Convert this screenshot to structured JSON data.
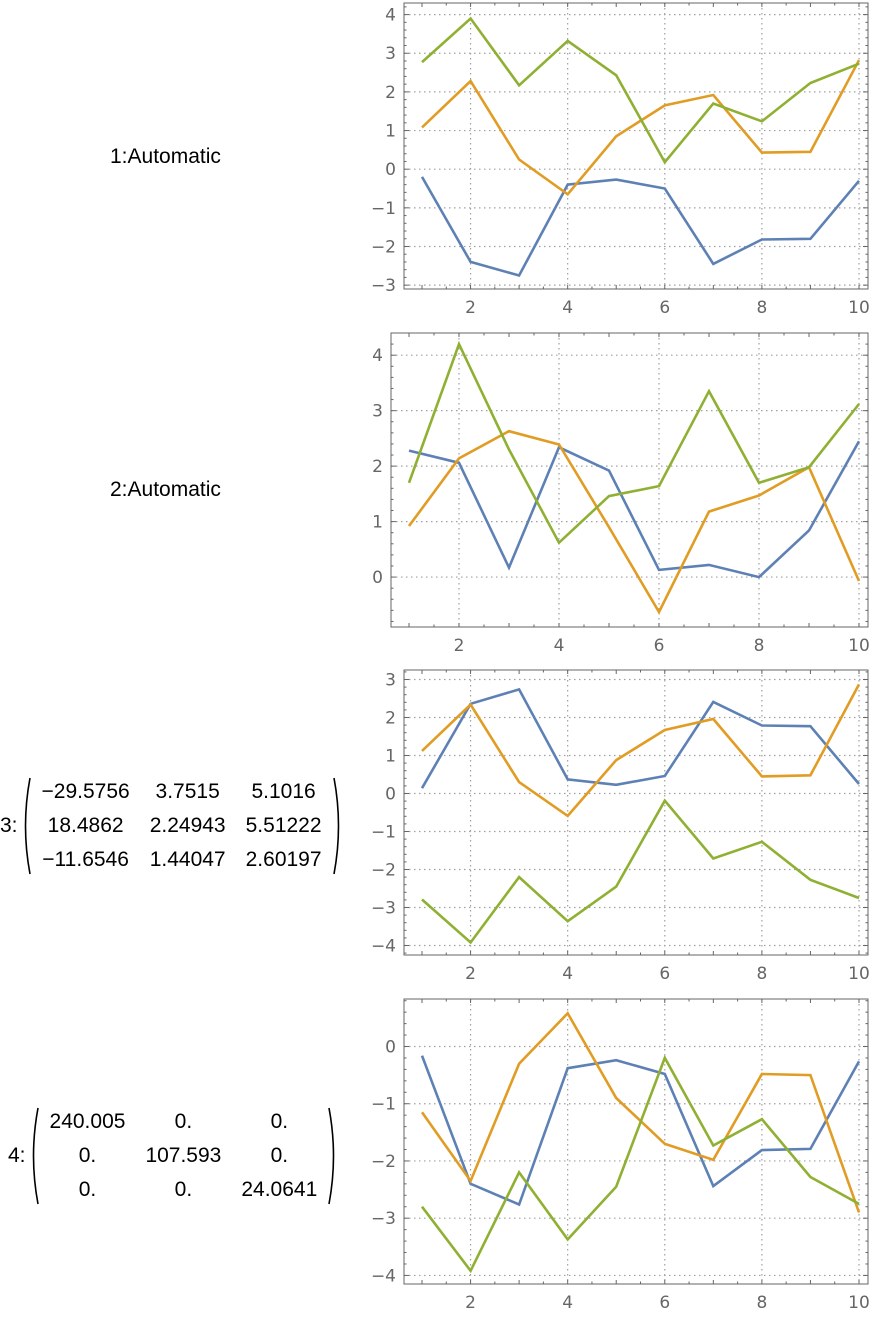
{
  "rows": [
    {
      "label": "1:",
      "spec": "Automatic"
    },
    {
      "label": "2:",
      "spec": "Automatic"
    },
    {
      "label": "3:",
      "matrix": [
        [
          "−29.5756",
          "3.7515",
          "5.1016"
        ],
        [
          "18.4862",
          "2.24943",
          "5.51222"
        ],
        [
          "−11.6546",
          "1.44047",
          "2.60197"
        ]
      ]
    },
    {
      "label": "4:",
      "matrix": [
        [
          "240.005",
          "0.",
          "0."
        ],
        [
          "0.",
          "107.593",
          "0."
        ],
        [
          "0.",
          "0.",
          "24.0641"
        ]
      ]
    }
  ],
  "colors": {
    "series1": "#5E81B5",
    "series2": "#E19C24",
    "series3": "#8FB032",
    "grid": "#a0a0a0",
    "frame": "#666666",
    "tick_text": "#666666"
  },
  "chart_data": [
    {
      "type": "line",
      "title": "1: Automatic",
      "x": [
        1,
        2,
        3,
        4,
        5,
        6,
        7,
        8,
        9,
        10
      ],
      "xticks": [
        2,
        4,
        6,
        8,
        10
      ],
      "yticks": [
        -3,
        -2,
        -1,
        0,
        1,
        2,
        3,
        4
      ],
      "ylim": [
        -3.1,
        4.3
      ],
      "grid": true,
      "series": [
        {
          "name": "series1",
          "values": [
            -0.2,
            -2.4,
            -2.75,
            -0.4,
            -0.27,
            -0.5,
            -2.45,
            -1.82,
            -1.8,
            -0.3
          ]
        },
        {
          "name": "series2",
          "values": [
            1.08,
            2.28,
            0.25,
            -0.65,
            0.85,
            1.65,
            1.92,
            0.43,
            0.45,
            2.82
          ]
        },
        {
          "name": "series3",
          "values": [
            2.77,
            3.9,
            2.17,
            3.32,
            2.43,
            0.18,
            1.7,
            1.24,
            2.23,
            2.73
          ]
        }
      ]
    },
    {
      "type": "line",
      "title": "2: Automatic",
      "x": [
        1,
        2,
        3,
        4,
        5,
        6,
        7,
        8,
        9,
        10
      ],
      "xticks": [
        2,
        4,
        6,
        8,
        10
      ],
      "yticks": [
        0,
        1,
        2,
        3,
        4
      ],
      "ylim": [
        -0.9,
        4.4
      ],
      "grid": true,
      "series": [
        {
          "name": "series1",
          "values": [
            2.28,
            2.06,
            0.17,
            2.34,
            1.92,
            0.13,
            0.22,
            0.0,
            0.84,
            2.45
          ]
        },
        {
          "name": "series2",
          "values": [
            0.92,
            2.14,
            2.63,
            2.39,
            0.9,
            -0.63,
            1.18,
            1.47,
            1.98,
            -0.07
          ]
        },
        {
          "name": "series3",
          "values": [
            1.7,
            4.2,
            2.3,
            0.62,
            1.46,
            1.64,
            3.35,
            1.7,
            1.98,
            3.12
          ]
        }
      ]
    },
    {
      "type": "line",
      "title": "3: matrix",
      "x": [
        1,
        2,
        3,
        4,
        5,
        6,
        7,
        8,
        9,
        10
      ],
      "xticks": [
        2,
        4,
        6,
        8,
        10
      ],
      "yticks": [
        -4,
        -3,
        -2,
        -1,
        0,
        1,
        2,
        3
      ],
      "ylim": [
        -4.25,
        3.25
      ],
      "grid": true,
      "series": [
        {
          "name": "series1",
          "values": [
            0.14,
            2.36,
            2.74,
            0.37,
            0.23,
            0.46,
            2.41,
            1.79,
            1.77,
            0.25
          ]
        },
        {
          "name": "series2",
          "values": [
            1.12,
            2.34,
            0.3,
            -0.59,
            0.88,
            1.67,
            1.96,
            0.45,
            0.48,
            2.87
          ]
        },
        {
          "name": "series3",
          "values": [
            -2.79,
            -3.92,
            -2.2,
            -3.36,
            -2.45,
            -0.19,
            -1.71,
            -1.27,
            -2.27,
            -2.75
          ]
        }
      ]
    },
    {
      "type": "line",
      "title": "4: matrix",
      "x": [
        1,
        2,
        3,
        4,
        5,
        6,
        7,
        8,
        9,
        10
      ],
      "xticks": [
        2,
        4,
        6,
        8,
        10
      ],
      "yticks": [
        -4,
        -3,
        -2,
        -1,
        0
      ],
      "ylim": [
        -4.15,
        0.83
      ],
      "grid": true,
      "series": [
        {
          "name": "series1",
          "values": [
            -0.16,
            -2.4,
            -2.76,
            -0.38,
            -0.24,
            -0.48,
            -2.44,
            -1.81,
            -1.79,
            -0.26
          ]
        },
        {
          "name": "series2",
          "values": [
            -1.15,
            -2.35,
            -0.3,
            0.58,
            -0.9,
            -1.7,
            -1.98,
            -0.48,
            -0.5,
            -2.9
          ]
        },
        {
          "name": "series3",
          "values": [
            -2.8,
            -3.92,
            -2.2,
            -3.37,
            -2.45,
            -0.2,
            -1.73,
            -1.27,
            -2.28,
            -2.75
          ]
        }
      ]
    }
  ]
}
